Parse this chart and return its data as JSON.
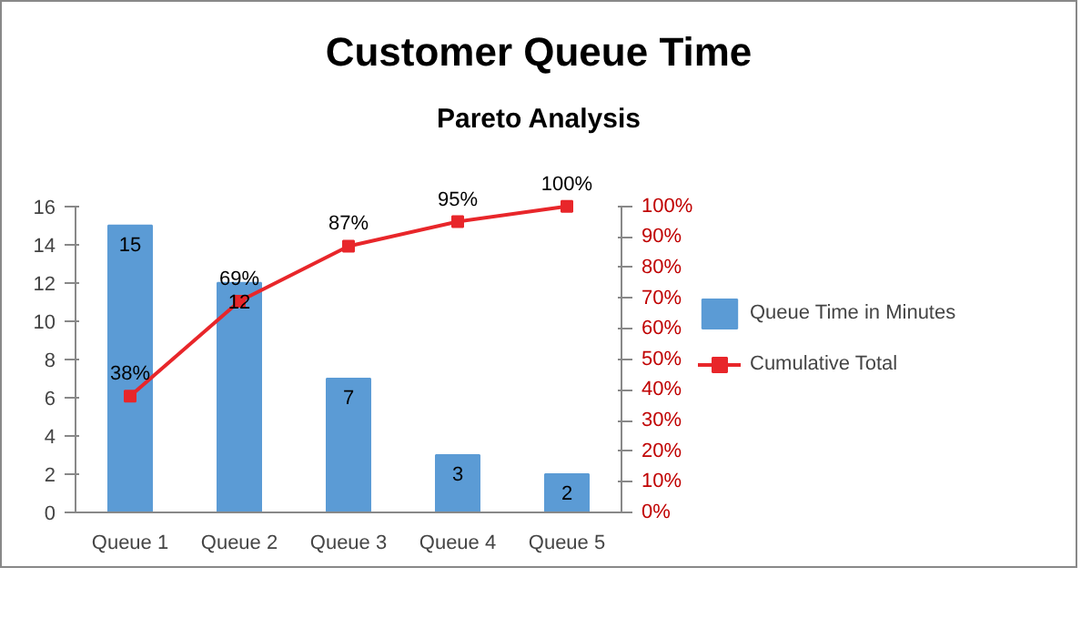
{
  "chart_data": {
    "type": "bar",
    "title": "Customer Queue Time",
    "subtitle": "Pareto Analysis",
    "categories": [
      "Queue 1",
      "Queue 2",
      "Queue 3",
      "Queue 4",
      "Queue 5"
    ],
    "series": [
      {
        "name": "Queue Time in Minutes",
        "color": "#5b9bd5",
        "values": [
          15,
          12,
          7,
          3,
          2
        ],
        "value_labels": [
          "15",
          "12",
          "7",
          "3",
          "2"
        ]
      },
      {
        "name": "Cumulative Total",
        "type": "line",
        "axis": "y2",
        "color": "#e8262a",
        "marker": "square",
        "values": [
          38,
          69,
          87,
          95,
          100
        ],
        "value_labels": [
          "38%",
          "69%",
          "87%",
          "95%",
          "100%"
        ]
      }
    ],
    "ylim": [
      0,
      16
    ],
    "yticks": [
      0,
      2,
      4,
      6,
      8,
      10,
      12,
      14,
      16
    ],
    "y2lim": [
      0,
      100
    ],
    "y2ticks": [
      {
        "value": 0,
        "label": "0%"
      },
      {
        "value": 10,
        "label": "10%"
      },
      {
        "value": 20,
        "label": "20%"
      },
      {
        "value": 30,
        "label": "30%"
      },
      {
        "value": 40,
        "label": "40%"
      },
      {
        "value": 50,
        "label": "50%"
      },
      {
        "value": 60,
        "label": "60%"
      },
      {
        "value": 70,
        "label": "70%"
      },
      {
        "value": 80,
        "label": "80%"
      },
      {
        "value": 90,
        "label": "90%"
      },
      {
        "value": 100,
        "label": "100%"
      }
    ],
    "grid": false,
    "legend": "right"
  }
}
